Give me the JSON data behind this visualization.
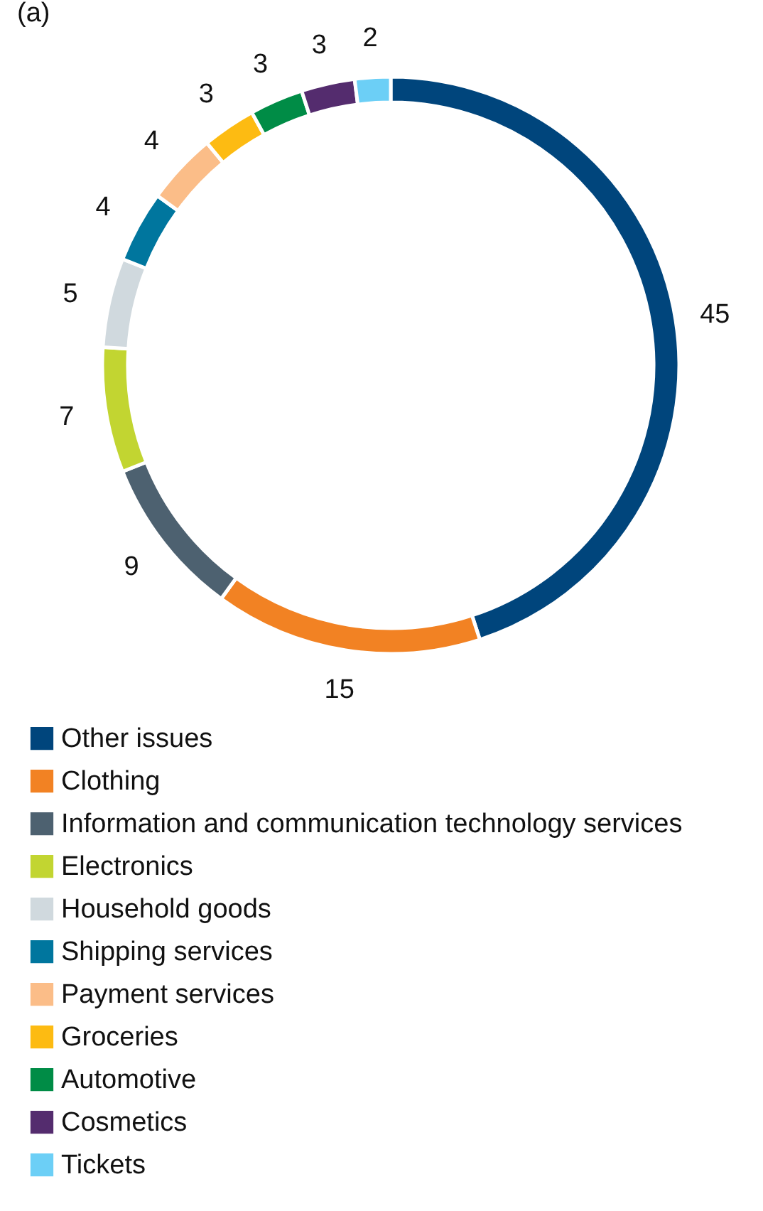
{
  "chart_data": {
    "type": "donut",
    "title": "(a)",
    "categories": [
      "Other issues",
      "Clothing",
      "Information and communication technology services",
      "Electronics",
      "Household goods",
      "Shipping services",
      "Payment services",
      "Groceries",
      "Automotive",
      "Cosmetics",
      "Tickets"
    ],
    "values": [
      45,
      15,
      9,
      7,
      5,
      4,
      4,
      3,
      3,
      3,
      2
    ],
    "colors": [
      "#00457c",
      "#f28223",
      "#4d6170",
      "#c2d531",
      "#d0d9de",
      "#00769e",
      "#fbbd88",
      "#fdbb12",
      "#008c46",
      "#542c6e",
      "#6ccff6"
    ],
    "data_labels": true,
    "legend": "bottom"
  }
}
